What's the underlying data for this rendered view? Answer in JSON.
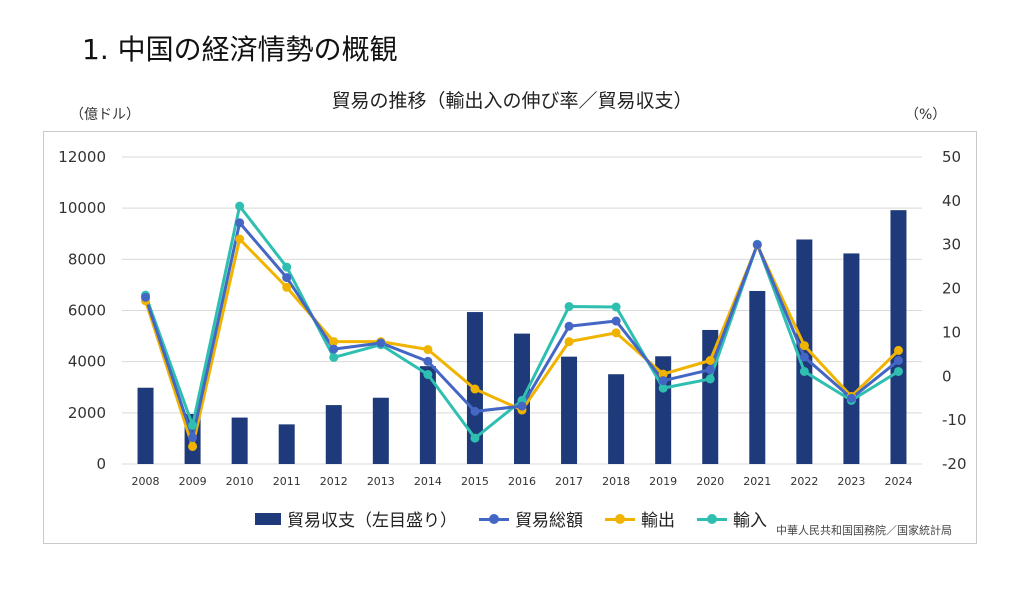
{
  "heading": "1.  中国の経済情勢の概観",
  "chart_title": "貿易の推移（輸出入の伸び率／貿易収支）",
  "unit_left": "（億ドル）",
  "unit_right": "（%）",
  "source": "中華人民共和国国務院／国家統計局",
  "colors": {
    "bar": "#1f3a7a",
    "total": "#4466c4",
    "export": "#f0b400",
    "import": "#2fbfb0"
  },
  "chart_data": {
    "type": "bar+line",
    "categories": [
      "2008",
      "2009",
      "2010",
      "2011",
      "2012",
      "2013",
      "2014",
      "2015",
      "2016",
      "2017",
      "2018",
      "2019",
      "2020",
      "2021",
      "2022",
      "2023",
      "2024"
    ],
    "y_left": {
      "label": "（億ドル）",
      "range": [
        0,
        12000
      ],
      "ticks": [
        "0",
        "2000",
        "4000",
        "6000",
        "8000",
        "10000",
        "12000"
      ]
    },
    "y_right": {
      "label": "（%）",
      "range": [
        -20,
        50
      ],
      "ticks": [
        "-20",
        "-10",
        "0",
        "10",
        "20",
        "30",
        "40",
        "50"
      ]
    },
    "grid": true,
    "legend_position": "bottom",
    "bars": {
      "name": "貿易収支（左目盛り）",
      "axis": "left",
      "values": [
        2981,
        1957,
        1815,
        1549,
        2303,
        2590,
        3825,
        5939,
        5097,
        4196,
        3509,
        4211,
        5240,
        6763,
        8776,
        8231,
        9922
      ]
    },
    "series": [
      {
        "name": "貿易総額",
        "axis": "right",
        "values": [
          18,
          -14,
          35,
          22.5,
          6.2,
          7.6,
          3.4,
          -8,
          -6.8,
          11.4,
          12.6,
          -1,
          1.5,
          30,
          4.4,
          -5,
          3.6
        ]
      },
      {
        "name": "輸出",
        "axis": "right",
        "values": [
          17.2,
          -16,
          31.3,
          20.3,
          7.9,
          7.9,
          6.1,
          -2.9,
          -7.7,
          7.9,
          9.9,
          0.5,
          3.6,
          29.9,
          7,
          -4.6,
          5.9
        ]
      },
      {
        "name": "輸入",
        "axis": "right",
        "values": [
          18.5,
          -11.2,
          38.8,
          24.9,
          4.3,
          7.2,
          0.4,
          -14.1,
          -5.5,
          15.9,
          15.8,
          -2.7,
          -0.6,
          30.1,
          1.1,
          -5.5,
          1.1
        ]
      }
    ]
  },
  "legend": [
    {
      "key": "bars",
      "label": "貿易収支（左目盛り）"
    },
    {
      "key": "total",
      "label": "貿易総額"
    },
    {
      "key": "export",
      "label": "輸出"
    },
    {
      "key": "import",
      "label": "輸入"
    }
  ]
}
